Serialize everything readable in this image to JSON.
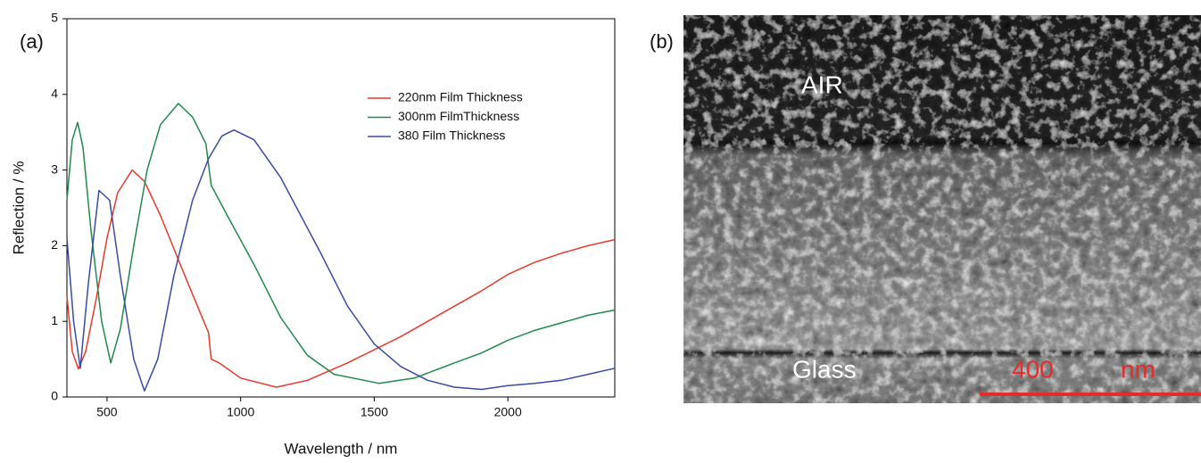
{
  "chart_data": {
    "type": "line",
    "panel_label": "(a)",
    "x_label": "Wavelength / nm",
    "y_label": "Reflection / %",
    "xlim": [
      350,
      2400
    ],
    "xticks": [
      500,
      1000,
      1500,
      2000
    ],
    "ylim": [
      0,
      5
    ],
    "yticks": [
      0,
      1,
      2,
      3,
      4,
      5
    ],
    "series": [
      {
        "name": "220nm Film Thickness",
        "color": "#e8392b",
        "x": [
          350,
          370,
          393,
          420,
          460,
          500,
          540,
          594,
          640,
          700,
          780,
          850,
          880,
          890,
          920,
          1000,
          1134,
          1250,
          1400,
          1600,
          1800,
          1900,
          2000,
          2100,
          2200,
          2300,
          2400
        ],
        "values": [
          1.33,
          0.6,
          0.37,
          0.6,
          1.3,
          2.1,
          2.7,
          3.0,
          2.85,
          2.4,
          1.7,
          1.1,
          0.85,
          0.5,
          0.45,
          0.25,
          0.13,
          0.22,
          0.45,
          0.8,
          1.2,
          1.4,
          1.62,
          1.78,
          1.9,
          2.0,
          2.08
        ]
      },
      {
        "name": "300nm FilmThickness",
        "color": "#1f8a4c",
        "x": [
          350,
          370,
          390,
          410,
          440,
          480,
          514,
          550,
          600,
          650,
          700,
          767,
          820,
          870,
          890,
          950,
          1050,
          1150,
          1250,
          1350,
          1518,
          1650,
          1800,
          1900,
          2000,
          2100,
          2200,
          2300,
          2400
        ],
        "values": [
          2.6,
          3.4,
          3.63,
          3.3,
          2.2,
          1.0,
          0.45,
          0.9,
          2.0,
          3.0,
          3.6,
          3.88,
          3.7,
          3.35,
          2.8,
          2.4,
          1.75,
          1.05,
          0.55,
          0.3,
          0.18,
          0.25,
          0.45,
          0.58,
          0.75,
          0.88,
          0.98,
          1.08,
          1.15
        ]
      },
      {
        "name": "380 Film Thickness",
        "color": "#3a4aa0",
        "x": [
          350,
          375,
          400,
          430,
          470,
          510,
          550,
          600,
          640,
          690,
          750,
          820,
          880,
          930,
          975,
          1050,
          1150,
          1300,
          1400,
          1500,
          1600,
          1700,
          1800,
          1902,
          2000,
          2100,
          2200,
          2300,
          2400
        ],
        "values": [
          2.1,
          1.0,
          0.38,
          1.5,
          2.73,
          2.6,
          1.6,
          0.5,
          0.08,
          0.5,
          1.6,
          2.6,
          3.15,
          3.45,
          3.53,
          3.4,
          2.9,
          1.9,
          1.2,
          0.7,
          0.4,
          0.22,
          0.13,
          0.1,
          0.15,
          0.18,
          0.22,
          0.3,
          0.38
        ]
      }
    ]
  },
  "image": {
    "panel_label": "(b)",
    "top_label": "AIR",
    "bottom_label": "Glass",
    "scale_value": 400,
    "scale_unit": "nm"
  }
}
